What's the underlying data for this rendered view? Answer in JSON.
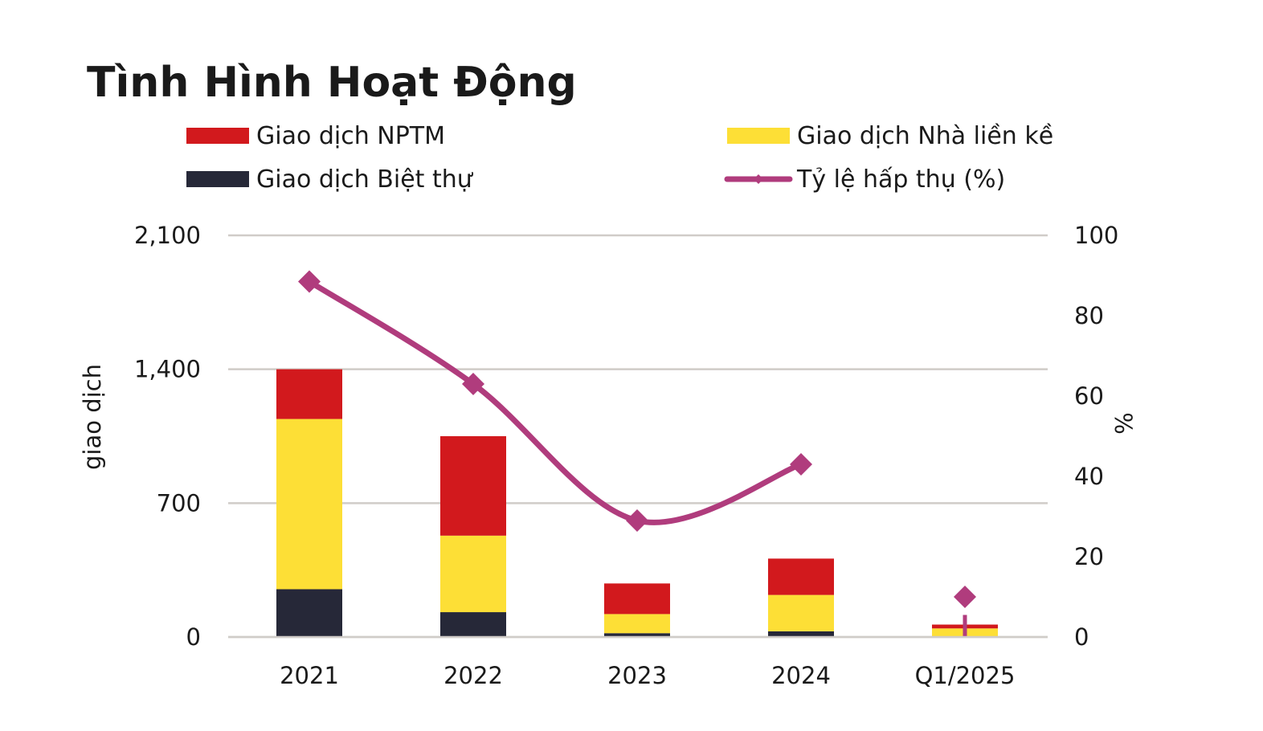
{
  "chart_data": {
    "type": "bar",
    "stacked": true,
    "title": "Tình Hình Hoạt Động",
    "categories": [
      "2021",
      "2022",
      "2023",
      "2024",
      "Q1/2025"
    ],
    "series": [
      {
        "name": "Giao dịch Biệt thự",
        "type": "bar",
        "axis": "left",
        "color": "#262838",
        "values": [
          250,
          130,
          20,
          30,
          0
        ]
      },
      {
        "name": "Giao dịch Nhà liền kề",
        "type": "bar",
        "axis": "left",
        "color": "#FDDF36",
        "values": [
          890,
          400,
          100,
          190,
          45
        ]
      },
      {
        "name": "Giao dịch NPTM",
        "type": "bar",
        "axis": "left",
        "color": "#D2191D",
        "values": [
          260,
          520,
          160,
          190,
          20
        ]
      },
      {
        "name": "Tỷ lệ hấp thụ (%)",
        "type": "line",
        "axis": "right",
        "color": "#B03C7D",
        "values": [
          88.5,
          63,
          29,
          43,
          10
        ]
      }
    ],
    "legend_order": [
      "Giao dịch NPTM",
      "Giao dịch Nhà liền kề",
      "Giao dịch Biệt thự",
      "Tỷ lệ hấp thụ (%)"
    ],
    "ylabel": "giao dịch",
    "ylabel_right": "%",
    "ylim": [
      0,
      2100
    ],
    "ylim_right": [
      0,
      100
    ],
    "yticks": [
      "0",
      "700",
      "1,400",
      "2,100"
    ],
    "yticks_values": [
      0,
      700,
      1400,
      2100
    ],
    "yticks_right": [
      "0",
      "20",
      "40",
      "60",
      "80",
      "100"
    ],
    "yticks_right_values": [
      0,
      20,
      40,
      60,
      80,
      100
    ],
    "grid": true,
    "legend_position": "top"
  }
}
